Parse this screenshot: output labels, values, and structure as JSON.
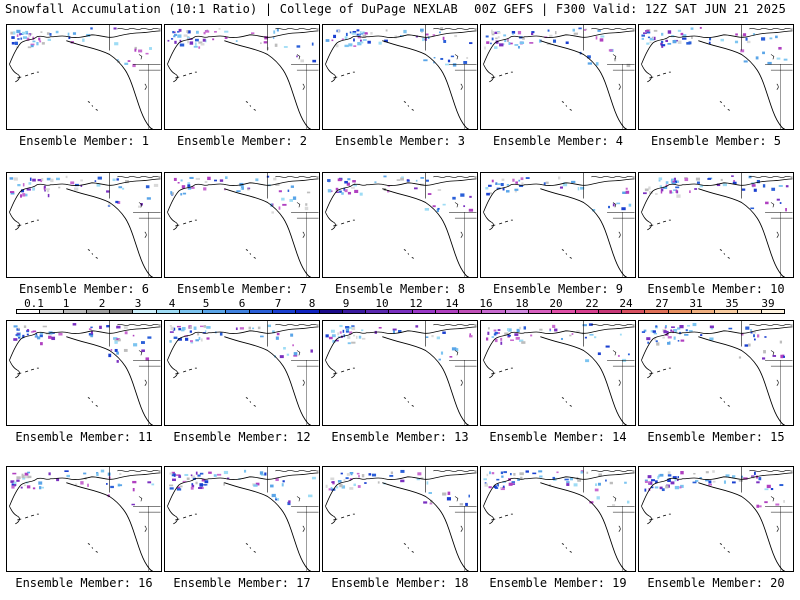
{
  "header": {
    "left": "Snowfall Accumulation (10:1 Ratio) | College of DuPage NEXLAB",
    "right": "00Z GEFS | F300 Valid: 12Z SAT JUN 21 2025"
  },
  "members": [
    "Ensemble Member: 1",
    "Ensemble Member: 2",
    "Ensemble Member: 3",
    "Ensemble Member: 4",
    "Ensemble Member: 5",
    "Ensemble Member: 6",
    "Ensemble Member: 7",
    "Ensemble Member: 8",
    "Ensemble Member: 9",
    "Ensemble Member: 10",
    "Ensemble Member: 11",
    "Ensemble Member: 12",
    "Ensemble Member: 13",
    "Ensemble Member: 14",
    "Ensemble Member: 15",
    "Ensemble Member: 16",
    "Ensemble Member: 17",
    "Ensemble Member: 18",
    "Ensemble Member: 19",
    "Ensemble Member: 20"
  ],
  "colorbar": {
    "labels": [
      "0.1",
      "1",
      "2",
      "3",
      "4",
      "5",
      "6",
      "7",
      "8",
      "9",
      "10",
      "12",
      "14",
      "16",
      "18",
      "20",
      "22",
      "24",
      "27",
      "31",
      "35",
      "39"
    ],
    "colors": [
      "#ffffff",
      "#d9d9d9",
      "#bdbdbd",
      "#a0a0a0",
      "#7f7f7f",
      "#cdeffa",
      "#9edcf5",
      "#7cc4f0",
      "#5aa5e8",
      "#4082e0",
      "#2a5fd8",
      "#1a3fd0",
      "#0f22c0",
      "#1a0a8a",
      "#3a1aa0",
      "#5a28b0",
      "#7a30c0",
      "#9a38c8",
      "#b040c0",
      "#c050b8",
      "#c86ad0",
      "#d088e0",
      "#d860c0",
      "#e050a8",
      "#d84090",
      "#c83878",
      "#d85060",
      "#e07058",
      "#e89060",
      "#f0b080",
      "#f8cca0",
      "#fce4c8",
      "#fff4e0"
    ]
  }
}
